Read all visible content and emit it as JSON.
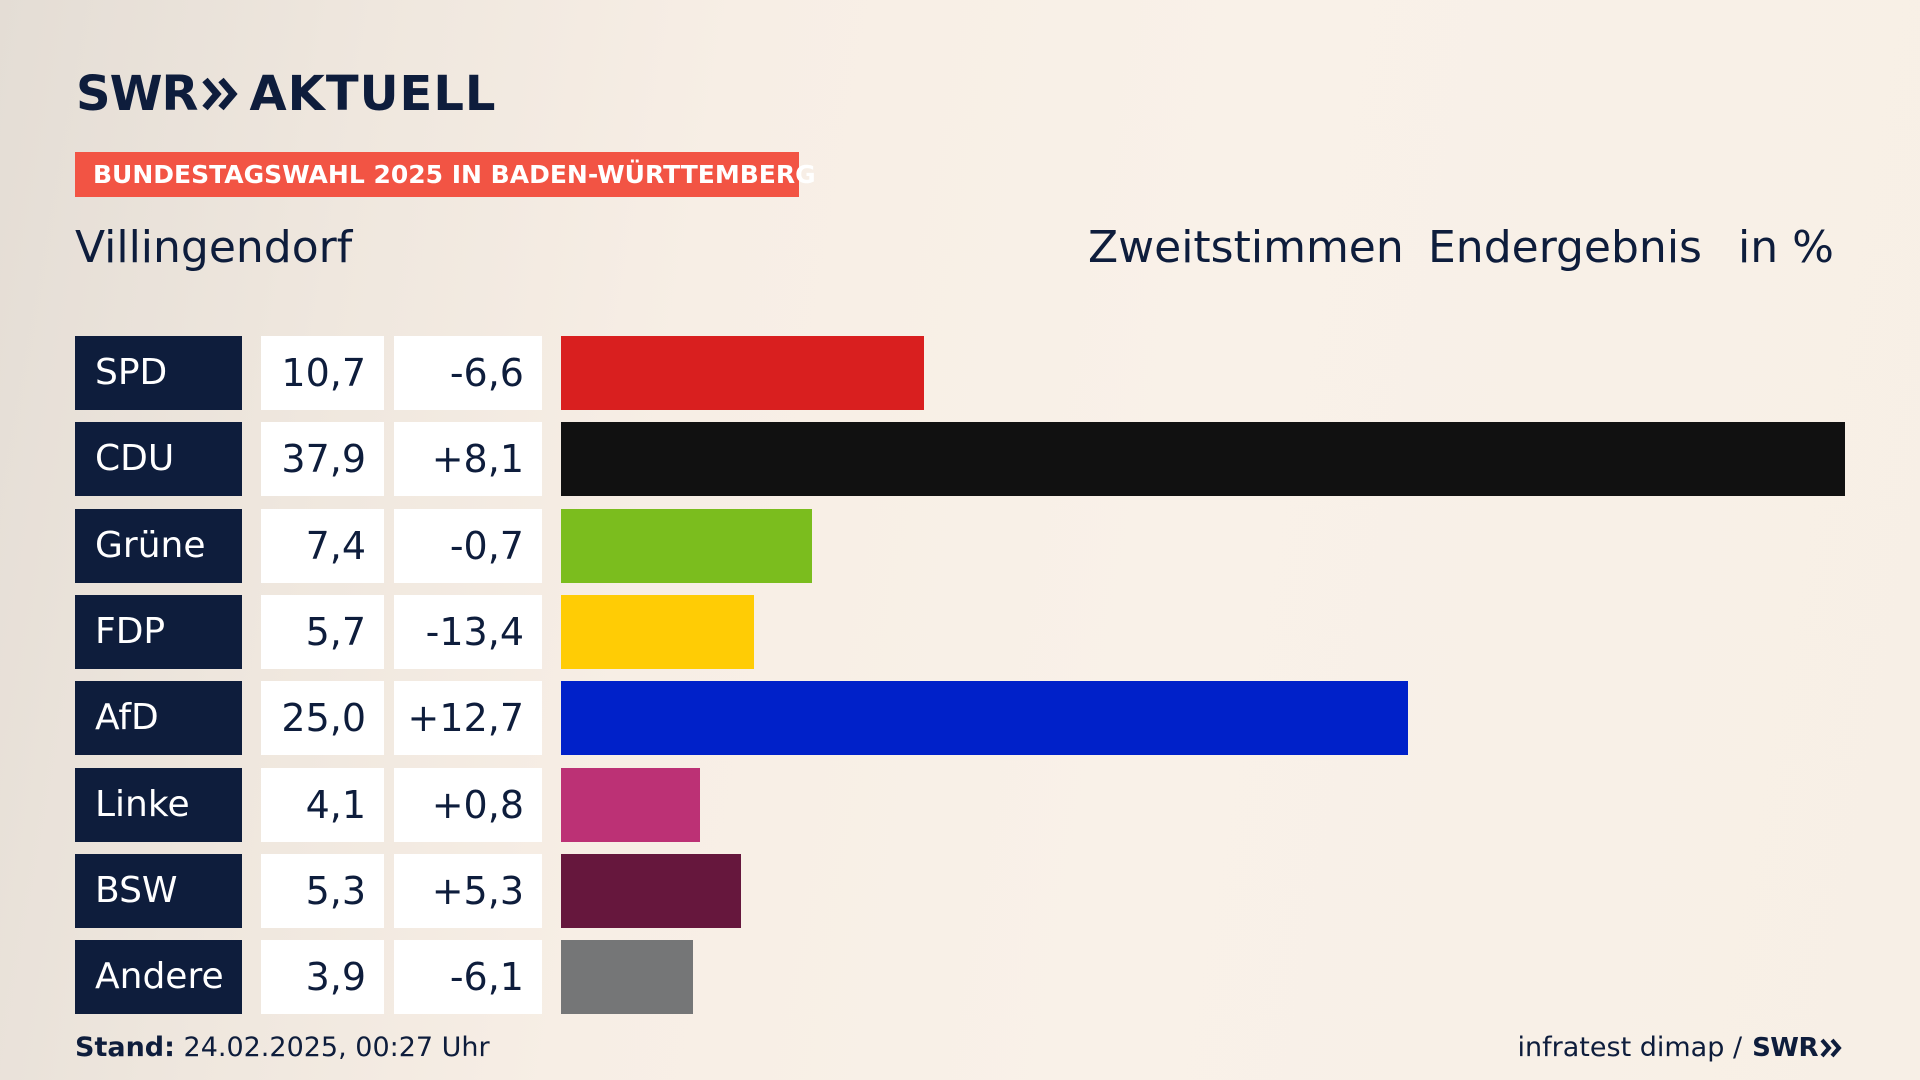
{
  "brand": {
    "logo_left": "SWR",
    "logo_right": "AKTUELL"
  },
  "badge": "BUNDESTAGSWAHL 2025 IN BADEN-WÜRTTEMBERG",
  "place": "Villingendorf",
  "header": {
    "col1": "Zweitstimmen",
    "col2": "Endergebnis",
    "col3": "in %"
  },
  "chart_data": {
    "type": "bar",
    "orientation": "horizontal",
    "categories": [
      "SPD",
      "CDU",
      "Grüne",
      "FDP",
      "AfD",
      "Linke",
      "BSW",
      "Andere"
    ],
    "values": [
      10.7,
      37.9,
      7.4,
      5.7,
      25.0,
      4.1,
      5.3,
      3.9
    ],
    "value_labels": [
      "10,7",
      "37,9",
      "7,4",
      "5,7",
      "25,0",
      "4,1",
      "5,3",
      "3,9"
    ],
    "diff_labels": [
      "-6,6",
      "+8,1",
      "-0,7",
      "-13,4",
      "+12,7",
      "+0,8",
      "+5,3",
      "-6,1"
    ],
    "diffs": [
      -6.6,
      8.1,
      -0.7,
      -13.4,
      12.7,
      0.8,
      5.3,
      -6.1
    ],
    "colors": [
      "#d91f1f",
      "#111111",
      "#7bbd1e",
      "#ffcc05",
      "#0021c9",
      "#bc3175",
      "#66173d",
      "#757677"
    ],
    "xlim": [
      0,
      37.9
    ],
    "grid": false,
    "legend": "none"
  },
  "footer": {
    "stand_label": "Stand:",
    "stand_value": "24.02.2025, 00:27 Uhr",
    "source": "infratest dimap /",
    "source_logo": "SWR"
  }
}
